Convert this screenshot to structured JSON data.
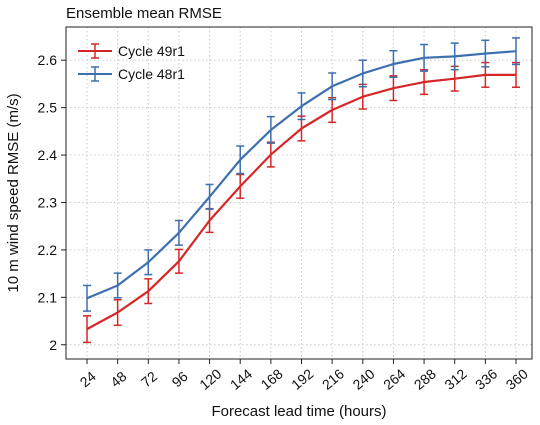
{
  "chart_data": {
    "type": "line",
    "title": "Ensemble mean RMSE",
    "xlabel": "Forecast lead time (hours)",
    "ylabel": "10 m wind speed RMSE (m/s)",
    "categories": [
      "24",
      "48",
      "72",
      "96",
      "120",
      "144",
      "168",
      "192",
      "216",
      "240",
      "264",
      "288",
      "312",
      "336",
      "360"
    ],
    "ylim": [
      1.97,
      2.67
    ],
    "yticks": [
      "2",
      "2.1",
      "2.2",
      "2.3",
      "2.4",
      "2.5",
      "2.6"
    ],
    "grid": true,
    "legend_position": "top-left",
    "series": [
      {
        "name": "Cycle 49r1",
        "color": "#d62728",
        "values": [
          2.033,
          2.068,
          2.113,
          2.176,
          2.262,
          2.334,
          2.401,
          2.456,
          2.495,
          2.523,
          2.541,
          2.554,
          2.561,
          2.569,
          2.569
        ],
        "errors": [
          0.028,
          0.027,
          0.026,
          0.025,
          0.025,
          0.025,
          0.026,
          0.026,
          0.026,
          0.026,
          0.026,
          0.026,
          0.026,
          0.026,
          0.026
        ]
      },
      {
        "name": "Cycle 48r1",
        "color": "#3d6faf",
        "values": [
          2.098,
          2.125,
          2.174,
          2.236,
          2.312,
          2.39,
          2.453,
          2.503,
          2.545,
          2.572,
          2.592,
          2.605,
          2.608,
          2.614,
          2.619
        ],
        "errors": [
          0.027,
          0.026,
          0.026,
          0.026,
          0.026,
          0.029,
          0.028,
          0.028,
          0.028,
          0.028,
          0.028,
          0.028,
          0.028,
          0.028,
          0.028
        ]
      }
    ]
  }
}
